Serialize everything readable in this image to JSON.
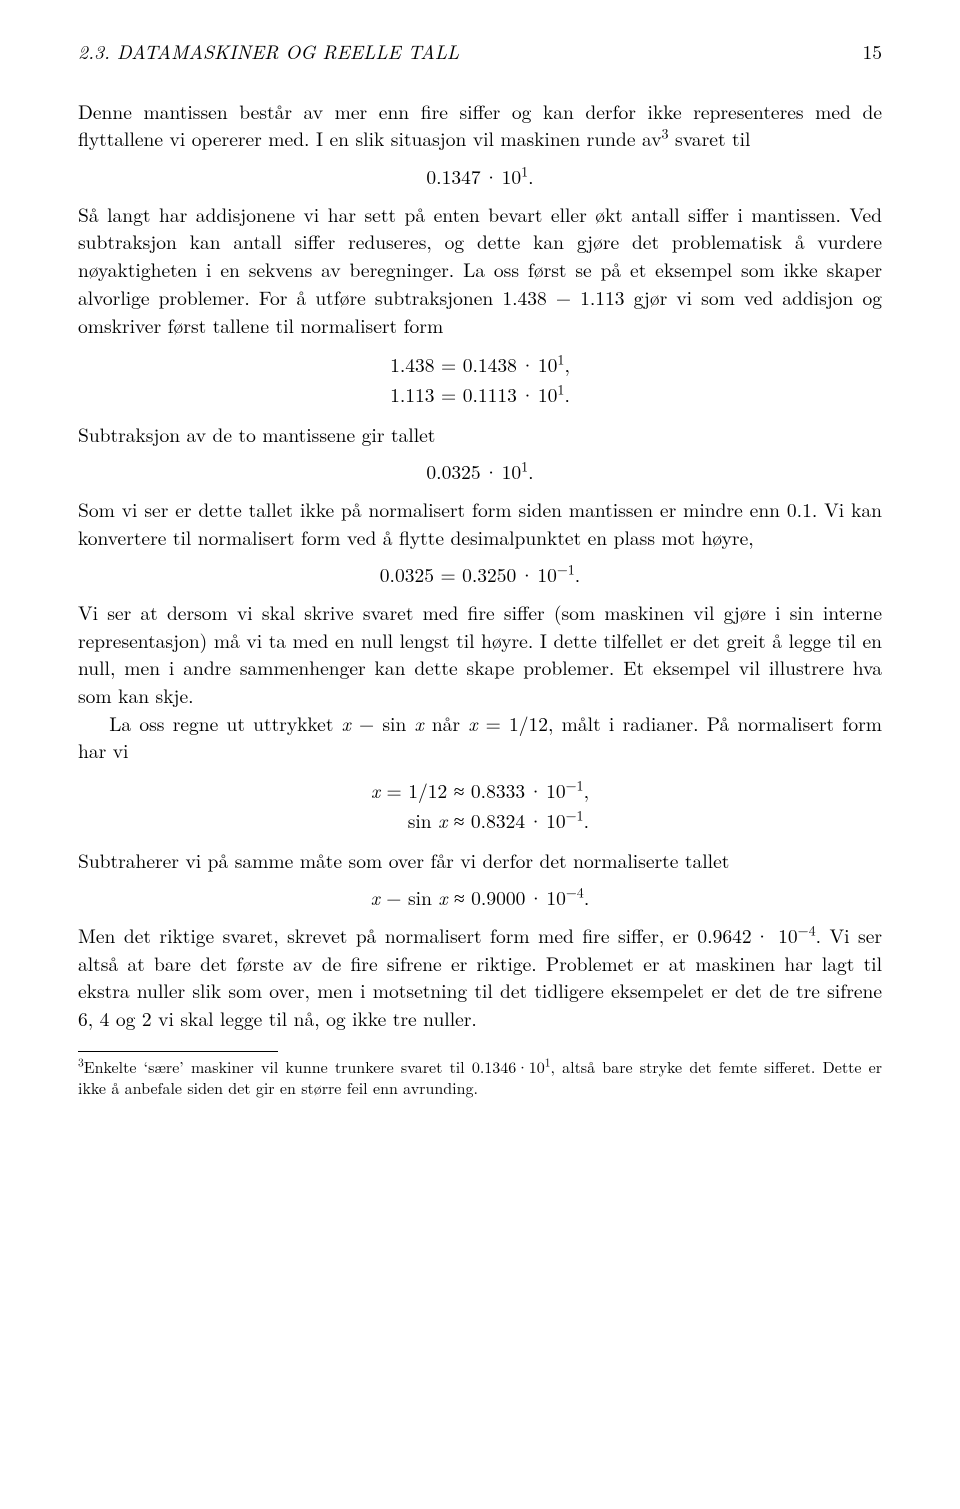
{
  "header": {
    "section_title": "2.3. DATAMASKINER OG REELLE TALL",
    "page_number": "15"
  },
  "body": {
    "p1_a": "Denne mantissen består av mer enn fire siffer og kan derfor ikke representeres med de flyttallene vi opererer med. I en slik situasjon vil maskinen runde av",
    "p1_b": " svaret til",
    "fn_mark_3": "3",
    "eq1": "0.1347 · 10¹.",
    "p2": "Så langt har addisjonene vi har sett på enten bevart eller økt antall siffer i mantissen. Ved subtraksjon kan antall siffer reduseres, og dette kan gjøre det problematisk å vurdere nøyaktigheten i en sekvens av beregninger. La oss først se på et eksempel som ikke skaper alvorlige problemer. For å utføre subtraksjonen 1.438 − 1.113 gjør vi som ved addisjon og omskriver først tallene til normalisert form",
    "eq2_l1": "1.438 = 0.1438 · 10¹,",
    "eq2_l2": "1.113 = 0.1113 · 10¹.",
    "p3": "Subtraksjon av de to mantissene gir tallet",
    "eq3": "0.0325 · 10¹.",
    "p4": "Som vi ser er dette tallet ikke på normalisert form siden mantissen er mindre enn 0.1. Vi kan konvertere til normalisert form ved å flytte desimalpunktet en plass mot høyre,",
    "eq4": "0.0325 = 0.3250 · 10⁻¹.",
    "p5": "Vi ser at dersom vi skal skrive svaret med fire siffer (som maskinen vil gjøre i sin interne representasjon) må vi ta med en null lengst til høyre. I dette tilfellet er det greit å legge til en null, men i andre sammenhenger kan dette skape problemer. Et eksempel vil illustrere hva som kan skje.",
    "p6_a": "La oss regne ut uttrykket ",
    "p6_b": " når ",
    "p6_c": ", målt i radianer. På normalisert form har vi",
    "math_x_minus_sinx": "x − sin x",
    "math_x_eq_112": "x = 1/12",
    "eq5_l1_lhs": "x = 1/12 ≈ ",
    "eq5_l1_rhs": "0.8333 · 10⁻¹,",
    "eq5_l2_lhs": "sin x ≈ ",
    "eq5_l2_rhs": "0.8324 · 10⁻¹.",
    "p7": "Subtraherer vi på samme måte som over får vi derfor det normaliserte tallet",
    "eq6": "x − sin x ≈ 0.9000 · 10⁻⁴.",
    "p8": "Men det riktige svaret, skrevet på normalisert form med fire siffer, er 0.9642 · 10⁻⁴. Vi ser altså at bare det første av de fire sifrene er riktige. Problemet er at maskinen har lagt til ekstra nuller slik som over, men i motsetning til det tidligere eksempelet er det de tre sifrene 6, 4 og 2 vi skal legge til nå, og ikke tre nuller."
  },
  "footnote": {
    "mark": "3",
    "text": "Enkelte 'sære' maskiner vil kunne trunkere svaret til 0.1346·10¹, altså bare stryke det femte sifferet. Dette er ikke å anbefale siden det gir en større feil enn avrunding."
  }
}
